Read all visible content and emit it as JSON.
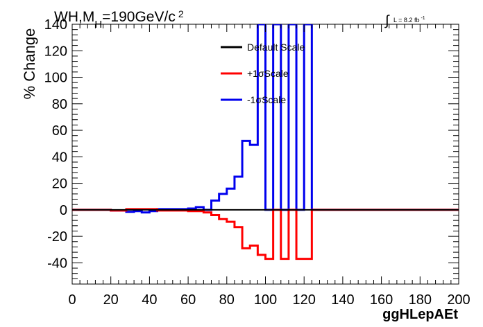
{
  "chart_data": {
    "type": "line",
    "title": "WH,M",
    "title_sub": "H",
    "title_rest": "=190GeV/c",
    "title_sup": "2",
    "lumi_text": "L = 8.2 fb",
    "lumi_sup": "-1",
    "xlabel": "ggHLepAEt",
    "ylabel": "% Change",
    "xlim": [
      0,
      200
    ],
    "ylim": [
      -56,
      140
    ],
    "x_ticks": [
      0,
      20,
      40,
      60,
      80,
      100,
      120,
      140,
      160,
      180,
      200
    ],
    "y_ticks": [
      -40,
      -20,
      0,
      20,
      40,
      60,
      80,
      100,
      120,
      140
    ],
    "grid": false,
    "legend_position": "top-center",
    "bin_edges": [
      0,
      4,
      8,
      12,
      16,
      20,
      24,
      28,
      32,
      36,
      40,
      44,
      48,
      52,
      56,
      60,
      64,
      68,
      72,
      76,
      80,
      84,
      88,
      92,
      96,
      100,
      104,
      108,
      112,
      116,
      120,
      124,
      128,
      132,
      136,
      140,
      144,
      148,
      152,
      156,
      160,
      164,
      168,
      172,
      176,
      180,
      184,
      188,
      192,
      196,
      200
    ],
    "series": [
      {
        "name": "Default Scale",
        "color": "#000000",
        "values": [
          0,
          0,
          0,
          0,
          0,
          0,
          0,
          0,
          0,
          0,
          0,
          0,
          0,
          0,
          0,
          0,
          0,
          0,
          0,
          0,
          0,
          0,
          0,
          0,
          0,
          0,
          0,
          0,
          0,
          0,
          0,
          0,
          0,
          0,
          0,
          0,
          0,
          0,
          0,
          0,
          0,
          0,
          0,
          0,
          0,
          0,
          0,
          0,
          0,
          0
        ]
      },
      {
        "name": "+1σScale",
        "color": "#ff0000",
        "values": [
          0,
          0,
          0,
          0,
          0,
          -0.5,
          -0.5,
          0.5,
          0.5,
          0.5,
          0.5,
          -0.5,
          -0.5,
          -0.5,
          -0.5,
          -1,
          -1,
          -2,
          -4,
          -7,
          -9,
          -13,
          -29,
          -27,
          -34,
          -37,
          0,
          -37,
          0,
          -37,
          -37,
          0,
          0,
          0,
          0,
          0,
          0,
          0,
          0,
          0,
          0,
          0,
          0,
          0,
          0,
          0,
          0,
          0,
          0,
          0
        ]
      },
      {
        "name": "-1σScale",
        "color": "#0000ee",
        "values": [
          0,
          0,
          0,
          0,
          0,
          -0.5,
          -0.5,
          -1.5,
          -1,
          -2,
          -1,
          0.5,
          0.5,
          0.5,
          0.5,
          1,
          2,
          0,
          7,
          12,
          16,
          25,
          52,
          49,
          140,
          0,
          140,
          0,
          140,
          0,
          140,
          0,
          0,
          0,
          0,
          0,
          0,
          0,
          0,
          0,
          0,
          0,
          0,
          0,
          0,
          0,
          0,
          0,
          0,
          0
        ]
      }
    ]
  }
}
